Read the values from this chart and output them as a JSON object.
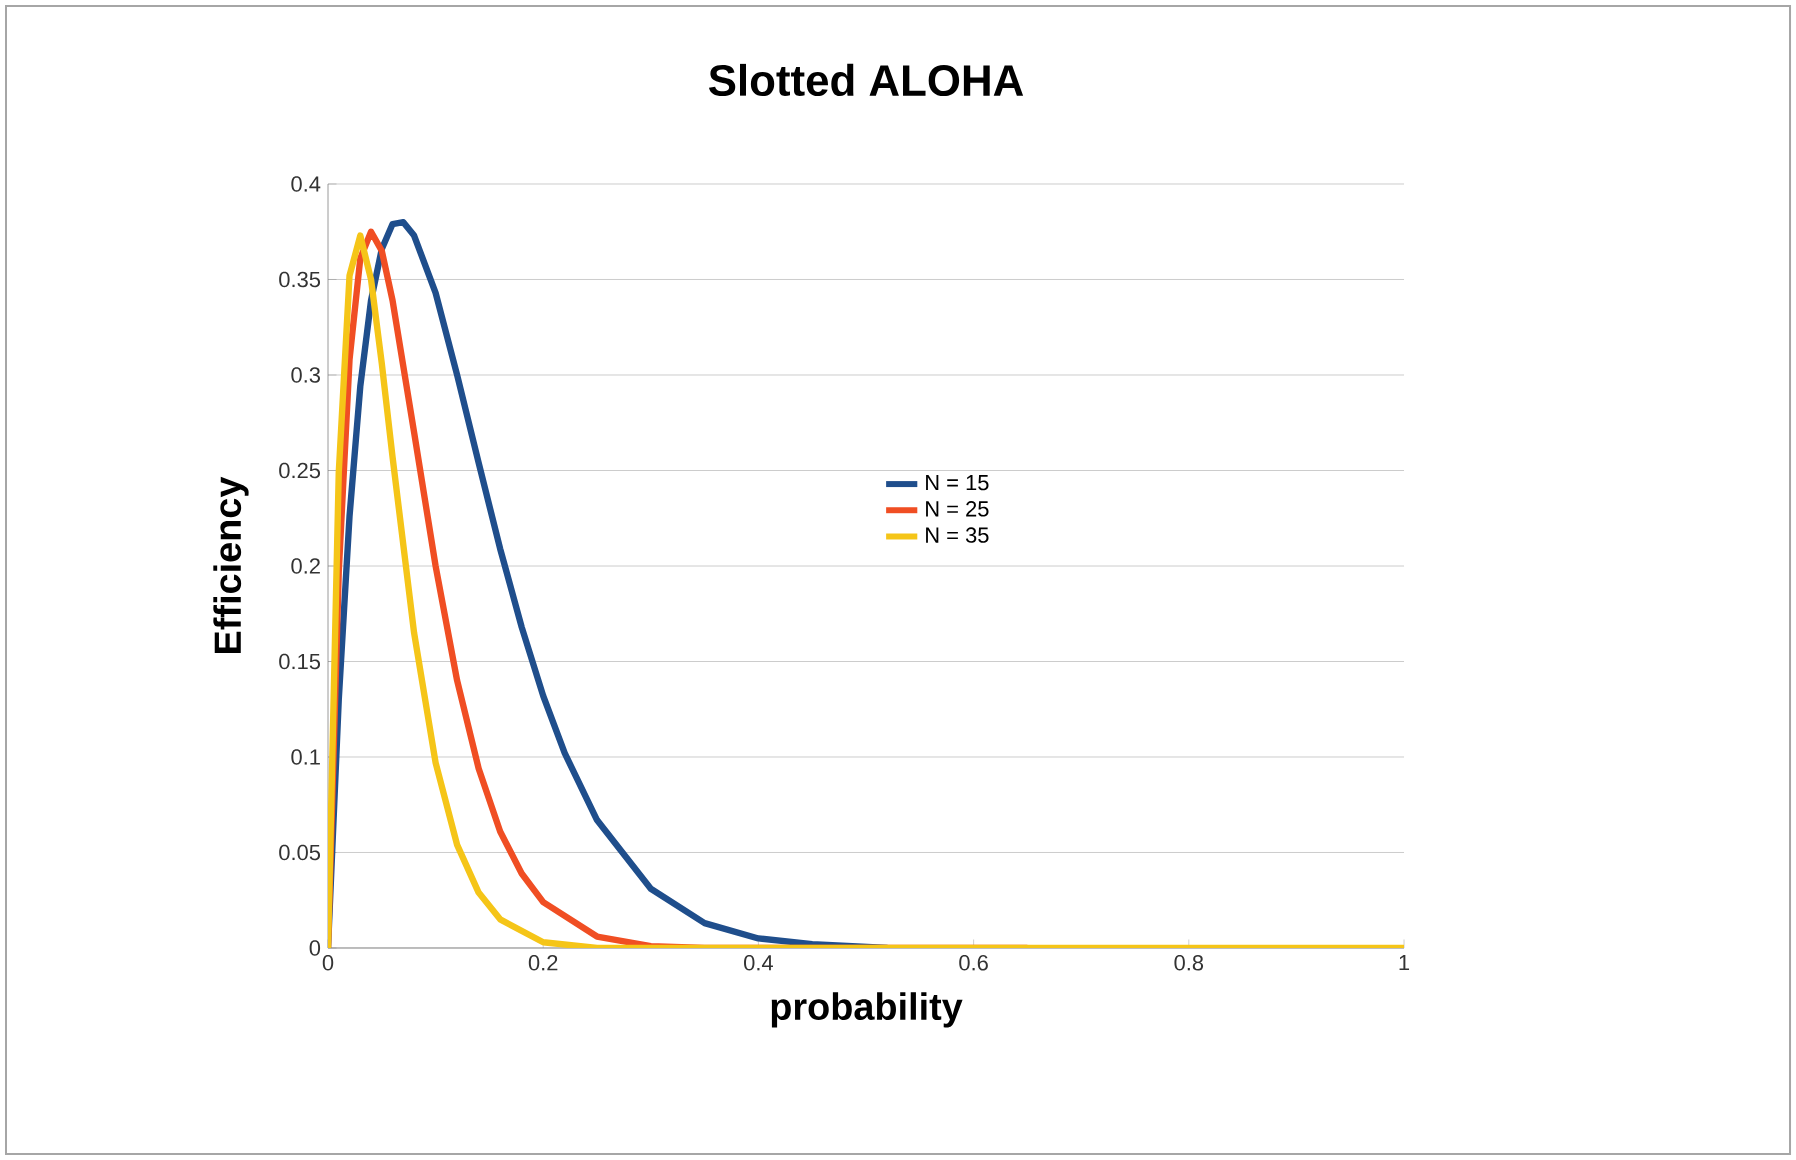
{
  "chart_data": {
    "type": "line",
    "title": "Slotted ALOHA",
    "xlabel": "probability",
    "ylabel": "Efficiency",
    "xlim": [
      0,
      1
    ],
    "xticks": [
      0,
      0.2,
      0.4,
      0.6,
      0.8,
      1
    ],
    "ylim": [
      0,
      0.4
    ],
    "yticks": [
      0,
      0.05,
      0.1,
      0.15,
      0.2,
      0.25,
      0.3,
      0.35,
      0.4
    ],
    "grid": "y",
    "legend": "center",
    "marker": "none",
    "line_style": "solid",
    "series": [
      {
        "name": "N = 15",
        "color": "#1f4e8c",
        "x": [
          0,
          0.01,
          0.02,
          0.03,
          0.04,
          0.05,
          0.06,
          0.07,
          0.08,
          0.1,
          0.12,
          0.14,
          0.16,
          0.18,
          0.2,
          0.22,
          0.25,
          0.3,
          0.35,
          0.4,
          0.45,
          0.52
        ],
        "values": [
          0,
          0.13,
          0.226,
          0.294,
          0.339,
          0.366,
          0.379,
          0.38,
          0.373,
          0.343,
          0.3,
          0.254,
          0.209,
          0.168,
          0.132,
          0.102,
          0.067,
          0.031,
          0.013,
          0.005,
          0.002,
          0
        ]
      },
      {
        "name": "N = 25",
        "color": "#f04e23",
        "x": [
          0,
          0.01,
          0.02,
          0.03,
          0.04,
          0.05,
          0.06,
          0.08,
          0.1,
          0.12,
          0.14,
          0.16,
          0.18,
          0.2,
          0.25,
          0.3,
          0.35,
          0.65
        ],
        "values": [
          0,
          0.197,
          0.308,
          0.361,
          0.375,
          0.365,
          0.339,
          0.27,
          0.2,
          0.14,
          0.094,
          0.061,
          0.039,
          0.024,
          0.006,
          0.001,
          0,
          0
        ]
      },
      {
        "name": "N = 35",
        "color": "#f5c518",
        "x": [
          0,
          0.01,
          0.02,
          0.03,
          0.04,
          0.05,
          0.06,
          0.08,
          0.1,
          0.12,
          0.14,
          0.16,
          0.2,
          0.25,
          1
        ],
        "values": [
          0,
          0.249,
          0.352,
          0.373,
          0.35,
          0.306,
          0.257,
          0.165,
          0.097,
          0.054,
          0.029,
          0.015,
          0.003,
          0,
          0
        ]
      }
    ]
  }
}
